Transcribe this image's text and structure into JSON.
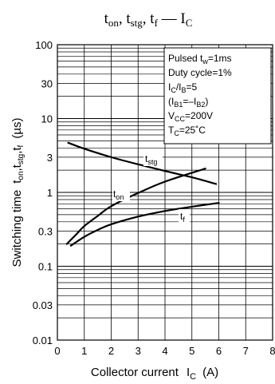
{
  "chart_data": {
    "type": "line",
    "title": {
      "base": "t",
      "sub_on": "on",
      "sub_stg": "stg",
      "sub_f": "f",
      "separator": ", ",
      "dash": " — ",
      "i_base": "I",
      "i_sub": "C"
    },
    "xlabel": {
      "text": "Collector current",
      "i_base": "I",
      "i_sub": "C",
      "unit": "(A)"
    },
    "ylabel": {
      "prefix": "Switching time",
      "t_base": "t",
      "sub_on": "on",
      "sub_stg": "stg",
      "sub_f": "f",
      "unit": "(µs)"
    },
    "x_scale": "linear",
    "y_scale": "log",
    "xlim": [
      0,
      8
    ],
    "ylim": [
      0.01,
      100
    ],
    "grid": true,
    "x_ticks": [
      {
        "value": 0,
        "label": "0"
      },
      {
        "value": 1,
        "label": "1"
      },
      {
        "value": 2,
        "label": "2"
      },
      {
        "value": 3,
        "label": "3"
      },
      {
        "value": 4,
        "label": "4"
      },
      {
        "value": 5,
        "label": "5"
      },
      {
        "value": 6,
        "label": "6"
      },
      {
        "value": 7,
        "label": "7"
      },
      {
        "value": 8,
        "label": "8"
      }
    ],
    "y_ticks": [
      {
        "value": 100,
        "label": "100"
      },
      {
        "value": 30,
        "label": "30"
      },
      {
        "value": 10,
        "label": "10"
      },
      {
        "value": 3,
        "label": "3"
      },
      {
        "value": 1,
        "label": "1"
      },
      {
        "value": 0.3,
        "label": "0.3"
      },
      {
        "value": 0.1,
        "label": "0.1"
      },
      {
        "value": 0.03,
        "label": "0.03"
      },
      {
        "value": 0.01,
        "label": "0.01"
      }
    ],
    "conditions": [
      {
        "base": "Pulsed t",
        "sub": "w",
        "rest": "=1ms"
      },
      {
        "base": "Duty cycle=1%",
        "sub": "",
        "rest": ""
      },
      {
        "base": "I",
        "sub": "C",
        "rest": "/I",
        "sub2": "B",
        "rest2": "=5"
      },
      {
        "base": "(I",
        "sub": "B1",
        "rest": "=–I",
        "sub2": "B2",
        "rest2": ")"
      },
      {
        "base": "V",
        "sub": "CC",
        "rest": "=200V"
      },
      {
        "base": "T",
        "sub": "C",
        "rest": "=25˚C"
      }
    ],
    "series": [
      {
        "name_base": "t",
        "name_sub": "stg",
        "x": [
          0.4,
          1,
          2,
          3,
          4,
          5,
          5.9
        ],
        "y": [
          4.7,
          3.9,
          3.0,
          2.4,
          1.95,
          1.6,
          1.3
        ]
      },
      {
        "name_base": "t",
        "name_sub": "on",
        "x": [
          0.35,
          0.7,
          1,
          1.5,
          2,
          3,
          4,
          5.5
        ],
        "y": [
          0.2,
          0.27,
          0.35,
          0.48,
          0.65,
          0.98,
          1.4,
          2.1
        ]
      },
      {
        "name_base": "t",
        "name_sub": "f",
        "x": [
          0.5,
          1,
          1.5,
          2,
          3,
          4,
          5,
          6
        ],
        "y": [
          0.19,
          0.25,
          0.31,
          0.37,
          0.47,
          0.56,
          0.64,
          0.72
        ]
      }
    ]
  }
}
